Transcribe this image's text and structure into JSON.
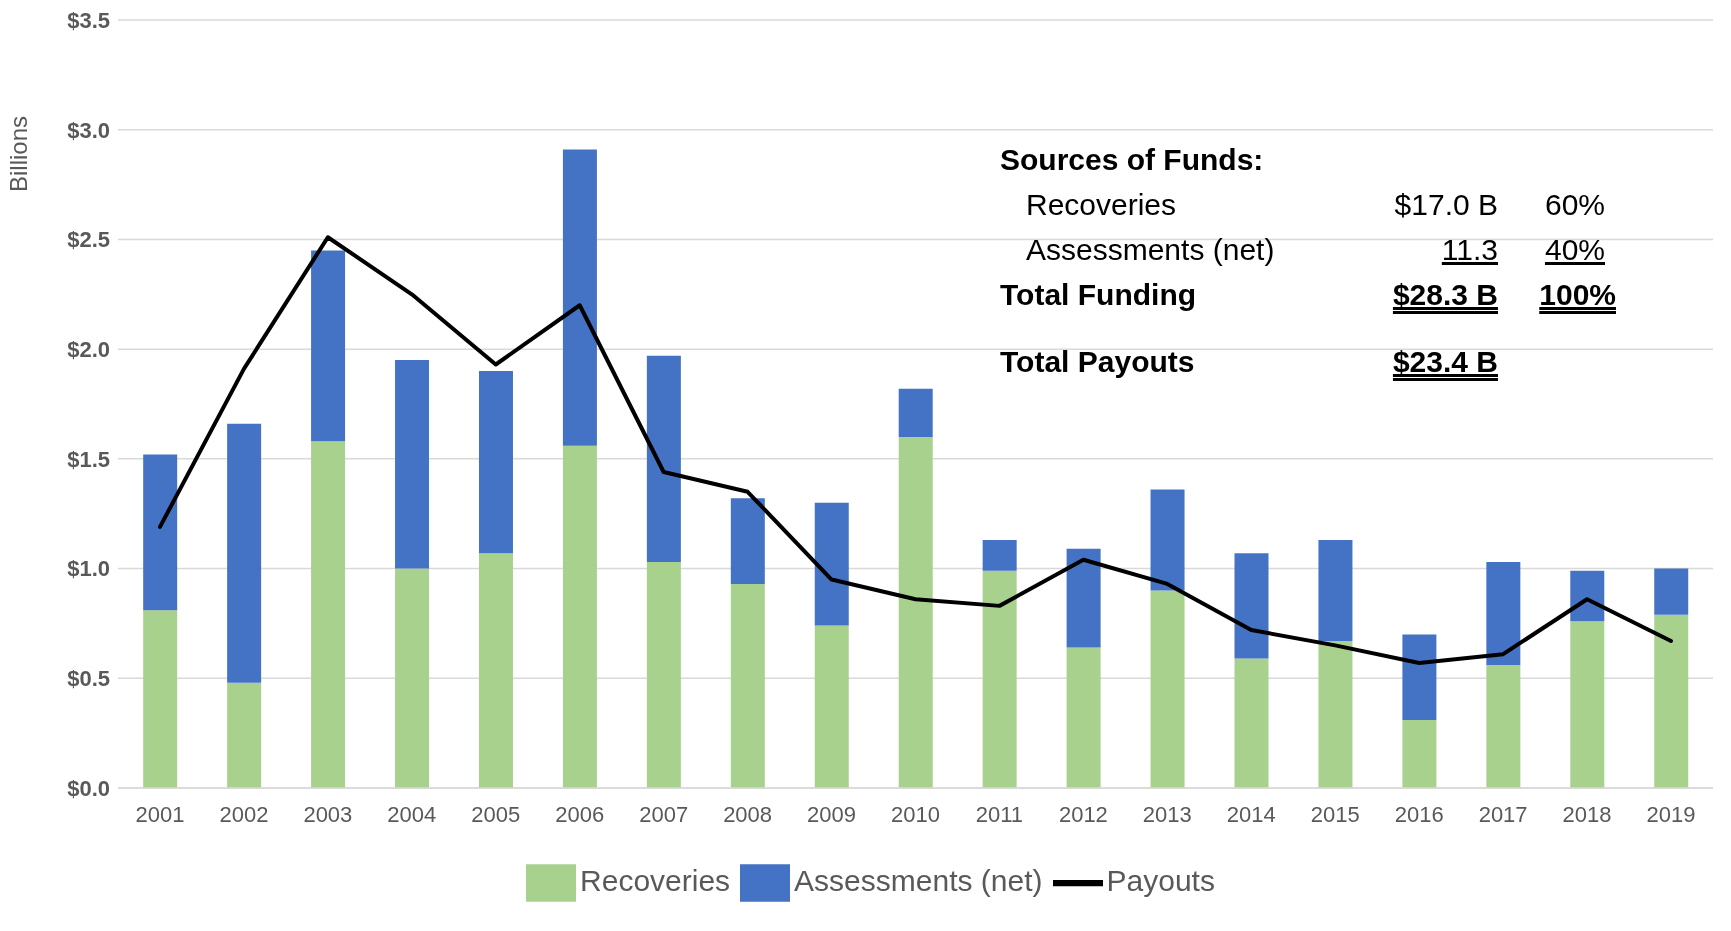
{
  "chart_data": {
    "type": "bar",
    "stacked": true,
    "ylabel": "Billions",
    "categories": [
      "2001",
      "2002",
      "2003",
      "2004",
      "2005",
      "2006",
      "2007",
      "2008",
      "2009",
      "2010",
      "2011",
      "2012",
      "2013",
      "2014",
      "2015",
      "2016",
      "2017",
      "2018",
      "2019"
    ],
    "series": [
      {
        "name": "Recoveries",
        "color": "#a9d18e",
        "values": [
          0.81,
          0.48,
          1.58,
          1.0,
          1.07,
          1.56,
          1.03,
          0.93,
          0.74,
          1.6,
          0.99,
          0.64,
          0.9,
          0.59,
          0.67,
          0.31,
          0.56,
          0.76,
          0.79
        ]
      },
      {
        "name": "Assessments (net)",
        "color": "#4472c4",
        "values": [
          0.71,
          1.18,
          0.87,
          0.95,
          0.83,
          1.35,
          0.94,
          0.39,
          0.56,
          0.22,
          0.14,
          0.45,
          0.46,
          0.48,
          0.46,
          0.39,
          0.47,
          0.23,
          0.21
        ]
      },
      {
        "name": "Payouts",
        "type": "line",
        "color": "#000000",
        "values": [
          1.19,
          1.91,
          2.51,
          2.25,
          1.93,
          2.2,
          1.44,
          1.35,
          0.95,
          0.86,
          0.83,
          1.04,
          0.93,
          0.72,
          0.65,
          0.57,
          0.61,
          0.86,
          0.67
        ]
      }
    ],
    "ylim": [
      0,
      3.5
    ],
    "yticks": [
      {
        "value": 0,
        "label": "$0.0"
      },
      {
        "value": 0.5,
        "label": "$0.5"
      },
      {
        "value": 1,
        "label": "$1.0"
      },
      {
        "value": 1.5,
        "label": "$1.5"
      },
      {
        "value": 2,
        "label": "$2.0"
      },
      {
        "value": 2.5,
        "label": "$2.5"
      },
      {
        "value": 3,
        "label": "$3.0"
      },
      {
        "value": 3.5,
        "label": "$3.5"
      }
    ],
    "grid": "y",
    "legend": "bottom",
    "marker": "none",
    "line_style": "solid",
    "annotations": [
      "Sources of Funds:",
      "Recoveries",
      "$17.0 B",
      "60%",
      "Assessments (net)",
      "11.3",
      "40%",
      "Total Funding",
      "$28.3 B",
      "100%",
      "Total Payouts",
      "$23.4 B"
    ]
  }
}
